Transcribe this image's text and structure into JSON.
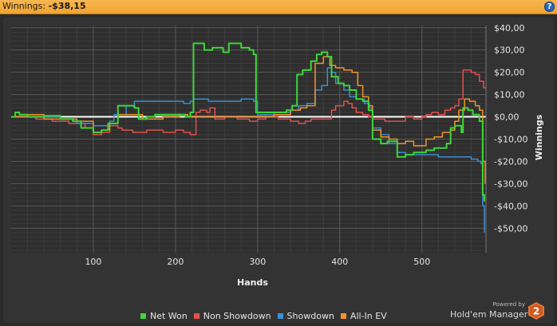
{
  "header": {
    "label": "Winnings:",
    "value": "-$38,15",
    "help_icon": "help-icon",
    "help_glyph": "?"
  },
  "colors": {
    "net_won": "#3fd63a",
    "non_showdown": "#e0514d",
    "showdown": "#3b8fd4",
    "all_in_ev": "#f0952c",
    "zero_line": "#ffffff",
    "header": "#f5ad3c"
  },
  "branding": {
    "powered_by": "Powered by",
    "name": "Hold'em Manager",
    "logo_text": "2"
  },
  "chart_data": {
    "type": "line",
    "xlabel": "Hands",
    "ylabel": "Winnings",
    "xlim": [
      0,
      578
    ],
    "ylim": [
      -61,
      41
    ],
    "x_ticks": [
      100,
      200,
      300,
      400,
      500
    ],
    "y_ticks": [
      40,
      30,
      20,
      10,
      0,
      -10,
      -20,
      -30,
      -40,
      -50
    ],
    "y_tick_labels": [
      "$40,00",
      "$30,00",
      "$20,00",
      "$10,00",
      "$0,00",
      "-$10,00",
      "-$20,00",
      "-$30,00",
      "-$40,00",
      "-$50,00"
    ],
    "grid": true,
    "legend_position": "bottom",
    "series": [
      {
        "name": "Net Won",
        "color_key": "net_won",
        "points": [
          [
            0,
            0
          ],
          [
            5,
            2
          ],
          [
            10,
            1
          ],
          [
            20,
            0
          ],
          [
            40,
            0.5
          ],
          [
            60,
            -1
          ],
          [
            75,
            -2
          ],
          [
            85,
            -5
          ],
          [
            100,
            -7
          ],
          [
            110,
            -6
          ],
          [
            118,
            -3
          ],
          [
            125,
            -3
          ],
          [
            130,
            5
          ],
          [
            140,
            5
          ],
          [
            150,
            4
          ],
          [
            155,
            -1
          ],
          [
            165,
            0
          ],
          [
            175,
            1
          ],
          [
            190,
            1
          ],
          [
            205,
            1
          ],
          [
            212,
            0
          ],
          [
            218,
            2
          ],
          [
            222,
            33
          ],
          [
            235,
            30
          ],
          [
            245,
            31
          ],
          [
            258,
            29
          ],
          [
            265,
            33
          ],
          [
            280,
            31
          ],
          [
            290,
            30
          ],
          [
            295,
            28
          ],
          [
            298,
            2
          ],
          [
            310,
            2
          ],
          [
            325,
            2
          ],
          [
            335,
            3
          ],
          [
            342,
            5
          ],
          [
            348,
            19
          ],
          [
            355,
            21
          ],
          [
            365,
            25
          ],
          [
            372,
            28
          ],
          [
            378,
            29
          ],
          [
            385,
            27
          ],
          [
            390,
            18
          ],
          [
            398,
            15
          ],
          [
            405,
            14
          ],
          [
            412,
            12
          ],
          [
            420,
            8
          ],
          [
            428,
            7
          ],
          [
            435,
            3
          ],
          [
            440,
            -10
          ],
          [
            450,
            -12
          ],
          [
            458,
            -11
          ],
          [
            465,
            -11
          ],
          [
            470,
            -18
          ],
          [
            480,
            -17
          ],
          [
            490,
            -16
          ],
          [
            505,
            -15
          ],
          [
            515,
            -14
          ],
          [
            530,
            -12
          ],
          [
            535,
            -5
          ],
          [
            540,
            -4
          ],
          [
            548,
            -7
          ],
          [
            550,
            4
          ],
          [
            556,
            3
          ],
          [
            562,
            1
          ],
          [
            570,
            -2
          ],
          [
            574,
            -35
          ],
          [
            576,
            -38
          ]
        ]
      },
      {
        "name": "Non Showdown",
        "color_key": "non_showdown",
        "points": [
          [
            0,
            0
          ],
          [
            15,
            0
          ],
          [
            30,
            -1
          ],
          [
            50,
            -2
          ],
          [
            70,
            -3
          ],
          [
            90,
            -5
          ],
          [
            100,
            -8
          ],
          [
            110,
            -7
          ],
          [
            120,
            -4
          ],
          [
            130,
            -5
          ],
          [
            135,
            -6
          ],
          [
            148,
            -7
          ],
          [
            165,
            -6
          ],
          [
            185,
            -7
          ],
          [
            200,
            -6
          ],
          [
            210,
            -7
          ],
          [
            218,
            -8
          ],
          [
            225,
            2
          ],
          [
            230,
            3
          ],
          [
            238,
            2
          ],
          [
            242,
            4
          ],
          [
            248,
            -1
          ],
          [
            260,
            0
          ],
          [
            275,
            -1
          ],
          [
            290,
            -2
          ],
          [
            300,
            -1
          ],
          [
            310,
            0
          ],
          [
            325,
            -1
          ],
          [
            340,
            -2
          ],
          [
            350,
            -3
          ],
          [
            358,
            -2
          ],
          [
            365,
            -1
          ],
          [
            372,
            -1
          ],
          [
            380,
            -1
          ],
          [
            390,
            3
          ],
          [
            395,
            5
          ],
          [
            405,
            7
          ],
          [
            410,
            6
          ],
          [
            415,
            4
          ],
          [
            420,
            2
          ],
          [
            428,
            1
          ],
          [
            435,
            0
          ],
          [
            440,
            -1
          ],
          [
            455,
            -2
          ],
          [
            470,
            -2
          ],
          [
            480,
            0
          ],
          [
            490,
            -1
          ],
          [
            500,
            0
          ],
          [
            505,
            1
          ],
          [
            512,
            2
          ],
          [
            520,
            1
          ],
          [
            528,
            3
          ],
          [
            535,
            4
          ],
          [
            540,
            5
          ],
          [
            545,
            8
          ],
          [
            550,
            21
          ],
          [
            560,
            20
          ],
          [
            565,
            19
          ],
          [
            570,
            16
          ],
          [
            575,
            13
          ],
          [
            578,
            13
          ]
        ]
      },
      {
        "name": "Showdown",
        "color_key": "showdown",
        "points": [
          [
            0,
            0
          ],
          [
            20,
            1
          ],
          [
            40,
            0
          ],
          [
            60,
            -1
          ],
          [
            80,
            -3
          ],
          [
            100,
            -4
          ],
          [
            110,
            -4
          ],
          [
            120,
            -2
          ],
          [
            125,
            1
          ],
          [
            140,
            5
          ],
          [
            150,
            7
          ],
          [
            165,
            7
          ],
          [
            185,
            7
          ],
          [
            210,
            6
          ],
          [
            218,
            7
          ],
          [
            222,
            8
          ],
          [
            240,
            7
          ],
          [
            260,
            7
          ],
          [
            280,
            8
          ],
          [
            295,
            7
          ],
          [
            300,
            1
          ],
          [
            320,
            2
          ],
          [
            340,
            3
          ],
          [
            350,
            5
          ],
          [
            360,
            6
          ],
          [
            370,
            12
          ],
          [
            378,
            14
          ],
          [
            385,
            22
          ],
          [
            390,
            20
          ],
          [
            395,
            15
          ],
          [
            405,
            12
          ],
          [
            412,
            9
          ],
          [
            420,
            8
          ],
          [
            430,
            6
          ],
          [
            436,
            4
          ],
          [
            440,
            -5
          ],
          [
            450,
            -8
          ],
          [
            460,
            -12
          ],
          [
            470,
            -16
          ],
          [
            480,
            -17
          ],
          [
            500,
            -17
          ],
          [
            520,
            -18
          ],
          [
            540,
            -18
          ],
          [
            560,
            -19
          ],
          [
            568,
            -20
          ],
          [
            572,
            -21
          ],
          [
            574,
            -40
          ],
          [
            576,
            -52
          ]
        ]
      },
      {
        "name": "All-In EV",
        "color_key": "all_in_ev",
        "points": [
          [
            0,
            0
          ],
          [
            20,
            1
          ],
          [
            40,
            -1
          ],
          [
            60,
            -1
          ],
          [
            80,
            -2
          ],
          [
            100,
            -7
          ],
          [
            110,
            -6
          ],
          [
            120,
            -3
          ],
          [
            130,
            1
          ],
          [
            140,
            1
          ],
          [
            160,
            -1
          ],
          [
            185,
            0
          ],
          [
            205,
            1
          ],
          [
            215,
            0
          ],
          [
            222,
            0
          ],
          [
            240,
            0
          ],
          [
            260,
            0
          ],
          [
            280,
            0
          ],
          [
            300,
            0
          ],
          [
            320,
            1
          ],
          [
            340,
            3
          ],
          [
            352,
            4
          ],
          [
            360,
            5
          ],
          [
            370,
            24
          ],
          [
            380,
            27
          ],
          [
            388,
            23
          ],
          [
            395,
            22
          ],
          [
            405,
            21
          ],
          [
            415,
            20
          ],
          [
            422,
            14
          ],
          [
            428,
            9
          ],
          [
            435,
            5
          ],
          [
            440,
            -6
          ],
          [
            450,
            -9
          ],
          [
            460,
            -10
          ],
          [
            470,
            -12
          ],
          [
            480,
            -11
          ],
          [
            490,
            -13
          ],
          [
            505,
            -10
          ],
          [
            515,
            -9
          ],
          [
            525,
            -7
          ],
          [
            535,
            -6
          ],
          [
            540,
            -2
          ],
          [
            545,
            3
          ],
          [
            552,
            8
          ],
          [
            558,
            7
          ],
          [
            565,
            5
          ],
          [
            570,
            3
          ],
          [
            574,
            -20
          ],
          [
            577,
            -30
          ]
        ]
      }
    ]
  }
}
